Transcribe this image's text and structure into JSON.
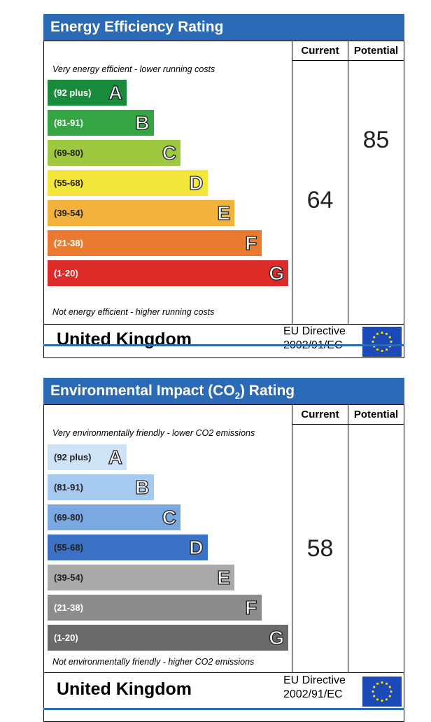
{
  "chart_data": [
    {
      "type": "bar",
      "title": "Energy Efficiency Rating",
      "columns": [
        "Current",
        "Potential"
      ],
      "top_caption": "Very energy efficient - lower running costs",
      "bottom_caption": "Not energy efficient - higher running costs",
      "bands": [
        {
          "range": "(92 plus)",
          "letter": "A",
          "color": "#1a8a3c",
          "text_color": "#ffffff"
        },
        {
          "range": "(81-91)",
          "letter": "B",
          "color": "#35a543",
          "text_color": "#ffffff"
        },
        {
          "range": "(69-80)",
          "letter": "C",
          "color": "#9dc83f",
          "text_color": "#222222"
        },
        {
          "range": "(55-68)",
          "letter": "D",
          "color": "#f4e73b",
          "text_color": "#222222"
        },
        {
          "range": "(39-54)",
          "letter": "E",
          "color": "#f3b23b",
          "text_color": "#222222"
        },
        {
          "range": "(21-38)",
          "letter": "F",
          "color": "#ea7a2f",
          "text_color": "#ffffff"
        },
        {
          "range": "(1-20)",
          "letter": "G",
          "color": "#dd2b2a",
          "text_color": "#ffffff"
        }
      ],
      "current": 64,
      "potential": 85,
      "country": "United Kingdom",
      "directive_line1": "EU Directive",
      "directive_line2": "2002/91/EC"
    },
    {
      "type": "bar",
      "title": "Environmental Impact (CO",
      "title_sub": "2",
      "title_suffix": ") Rating",
      "columns": [
        "Current",
        "Potential"
      ],
      "top_caption": "Very environmentally friendly - lower CO2 emissions",
      "bottom_caption": "Not environmentally friendly - higher CO2 emissions",
      "bands": [
        {
          "range": "(92 plus)",
          "letter": "A",
          "color": "#cfe3f7",
          "text_color": "#222222"
        },
        {
          "range": "(81-91)",
          "letter": "B",
          "color": "#a6c9ef",
          "text_color": "#222222"
        },
        {
          "range": "(69-80)",
          "letter": "C",
          "color": "#7aa9e1",
          "text_color": "#222222"
        },
        {
          "range": "(55-68)",
          "letter": "D",
          "color": "#3c72c5",
          "text_color": "#222222"
        },
        {
          "range": "(39-54)",
          "letter": "E",
          "color": "#a9a9a9",
          "text_color": "#222222"
        },
        {
          "range": "(21-38)",
          "letter": "F",
          "color": "#8c8c8c",
          "text_color": "#ffffff"
        },
        {
          "range": "(1-20)",
          "letter": "G",
          "color": "#6a6a6a",
          "text_color": "#ffffff"
        }
      ],
      "current": 58,
      "potential": null,
      "country": "United Kingdom",
      "directive_line1": "EU Directive",
      "directive_line2": "2002/91/EC"
    }
  ]
}
